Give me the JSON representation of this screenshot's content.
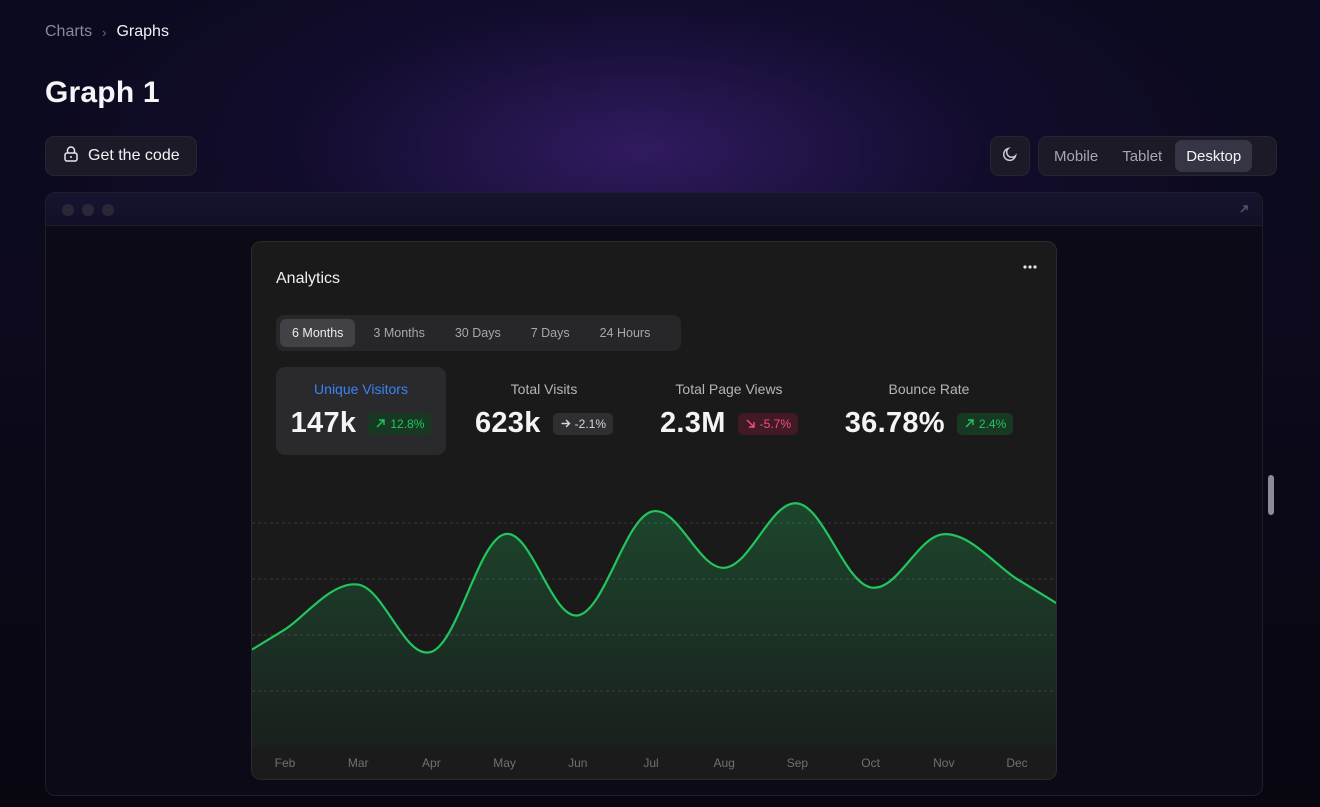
{
  "breadcrumb": {
    "parent": "Charts",
    "current": "Graphs"
  },
  "page": {
    "title": "Graph 1"
  },
  "toolbar": {
    "get_code_label": "Get the code",
    "devices": [
      {
        "label": "Mobile",
        "active": false
      },
      {
        "label": "Tablet",
        "active": false
      },
      {
        "label": "Desktop",
        "active": true
      }
    ]
  },
  "card": {
    "title": "Analytics",
    "ranges": [
      {
        "label": "6 Months",
        "active": true
      },
      {
        "label": "3 Months",
        "active": false
      },
      {
        "label": "30 Days",
        "active": false
      },
      {
        "label": "7 Days",
        "active": false
      },
      {
        "label": "24 Hours",
        "active": false
      }
    ],
    "stats": [
      {
        "label": "Unique Visitors",
        "value": "147k",
        "change": "12.8%",
        "trend": "up",
        "active": true
      },
      {
        "label": "Total Visits",
        "value": "623k",
        "change": "-2.1%",
        "trend": "flat",
        "active": false
      },
      {
        "label": "Total Page Views",
        "value": "2.3M",
        "change": "-5.7%",
        "trend": "down",
        "active": false
      },
      {
        "label": "Bounce Rate",
        "value": "36.78%",
        "change": "2.4%",
        "trend": "up",
        "active": false
      }
    ]
  },
  "colors": {
    "accent_blue": "#3b82f6",
    "line_green": "#22c55e",
    "negative_red": "#f0527a"
  },
  "chart_data": {
    "type": "area",
    "x": [
      "Feb",
      "Mar",
      "Apr",
      "May",
      "Jun",
      "Jul",
      "Aug",
      "Sep",
      "Oct",
      "Nov",
      "Dec"
    ],
    "series": [
      {
        "values": [
          42,
          58,
          34,
          76,
          47,
          84,
          64,
          87,
          57,
          76,
          60
        ]
      }
    ],
    "ylim": [
      0,
      100
    ],
    "grid": true
  }
}
